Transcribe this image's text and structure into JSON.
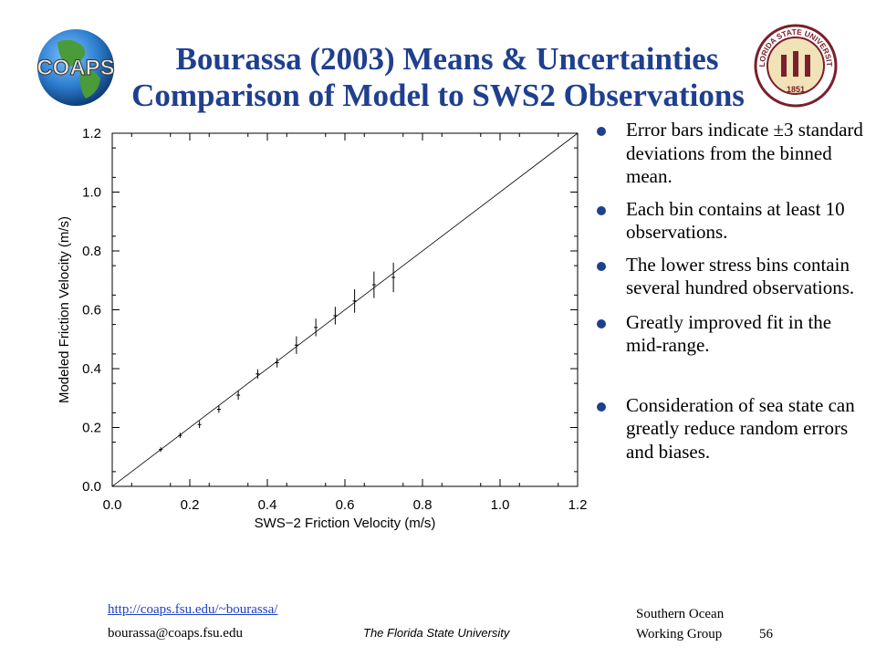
{
  "title": {
    "line1": "Bourassa (2003) Means & Uncertainties",
    "line2": "Comparison of Model to SWS2 Observations"
  },
  "logos": {
    "left_text": "COAPS",
    "right_top": "FLORIDA STATE UNIVERSITY",
    "right_year": "1851"
  },
  "colors": {
    "title": "#1f3f8f",
    "bullet": "#1f3f8f",
    "link": "#1f3fc8"
  },
  "bullets": [
    "Error bars indicate ±3 standard deviations from the binned mean.",
    "Each bin contains at least 10 observations.",
    "The lower stress bins contain several hundred observations.",
    "Greatly improved fit in the mid-range.",
    "Consideration of sea state can greatly reduce random errors and biases."
  ],
  "footer": {
    "link": "http://coaps.fsu.edu/~bourassa/",
    "email": "bourassa@coaps.fsu.edu",
    "university": "The Florida State University",
    "group_line1": "Southern Ocean",
    "group_line2": "Working Group",
    "slide_number": "56"
  },
  "chart_data": {
    "type": "scatter",
    "xlabel": "SWS−2 Friction Velocity (m/s)",
    "ylabel": "Modeled Friction Velocity (m/s)",
    "xlim": [
      0.0,
      1.2
    ],
    "ylim": [
      0.0,
      1.2
    ],
    "xticks": [
      "0.0",
      "0.2",
      "0.4",
      "0.6",
      "0.8",
      "1.0",
      "1.2"
    ],
    "yticks": [
      "0.0",
      "0.2",
      "0.4",
      "0.6",
      "0.8",
      "1.0",
      "1.2"
    ],
    "grid": false,
    "reference_line": "1:1",
    "points": [
      {
        "x": 0.125,
        "y": 0.125,
        "err": 0.008
      },
      {
        "x": 0.175,
        "y": 0.173,
        "err": 0.009
      },
      {
        "x": 0.225,
        "y": 0.21,
        "err": 0.012
      },
      {
        "x": 0.275,
        "y": 0.262,
        "err": 0.012
      },
      {
        "x": 0.325,
        "y": 0.31,
        "err": 0.016
      },
      {
        "x": 0.375,
        "y": 0.382,
        "err": 0.016
      },
      {
        "x": 0.425,
        "y": 0.42,
        "err": 0.016
      },
      {
        "x": 0.475,
        "y": 0.48,
        "err": 0.03
      },
      {
        "x": 0.525,
        "y": 0.54,
        "err": 0.03
      },
      {
        "x": 0.575,
        "y": 0.58,
        "err": 0.03
      },
      {
        "x": 0.625,
        "y": 0.63,
        "err": 0.04
      },
      {
        "x": 0.675,
        "y": 0.685,
        "err": 0.045
      },
      {
        "x": 0.725,
        "y": 0.71,
        "err": 0.05
      }
    ]
  }
}
